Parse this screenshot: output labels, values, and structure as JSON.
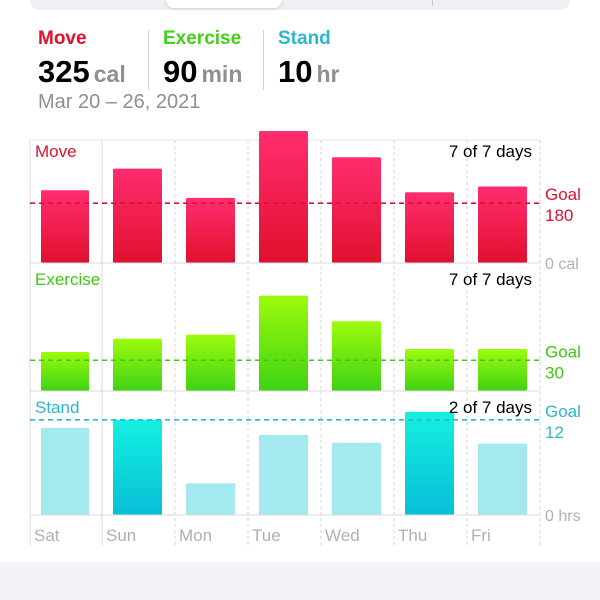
{
  "summary": {
    "move": {
      "label": "Move",
      "value": "325",
      "unit": "cal",
      "color": "#e0102e"
    },
    "exercise": {
      "label": "Exercise",
      "value": "90",
      "unit": "min",
      "color": "#3fd215"
    },
    "stand": {
      "label": "Stand",
      "value": "10",
      "unit": "hr",
      "color": "#2bb7cc"
    },
    "date_range": "Mar 20 – 26, 2021"
  },
  "chart_data": {
    "type": "bar",
    "categories": [
      "Sat",
      "Sun",
      "Mon",
      "Tue",
      "Wed",
      "Thu",
      "Fri"
    ],
    "panels": [
      {
        "name": "Move",
        "days_text": "7 of 7 days",
        "goal_label": "Goal",
        "goal_value": 180,
        "goal_value_text": "180",
        "baseline_text": "0 cal",
        "ymax": 370,
        "color_top": "#ff2d6f",
        "color_bottom": "#e0102e",
        "color_goal": "#d9132f",
        "label_color": "#d9132f",
        "values": [
          219,
          284,
          196,
          397,
          318,
          213,
          230
        ],
        "dim": [
          false,
          false,
          false,
          false,
          false,
          false,
          false
        ]
      },
      {
        "name": "Exercise",
        "days_text": "7 of 7 days",
        "goal_label": "Goal",
        "goal_value": 30,
        "goal_value_text": "30",
        "baseline_text": "",
        "ymax": 120,
        "color_top": "#9dfb0c",
        "color_bottom": "#3fd215",
        "color_goal": "#3ec90f",
        "label_color": "#3ec90f",
        "values": [
          38,
          51,
          55,
          93,
          68,
          41,
          41
        ],
        "dim": [
          false,
          false,
          false,
          false,
          false,
          false,
          false
        ]
      },
      {
        "name": "Stand",
        "days_text": "2 of 7 days",
        "goal_label": "Goal",
        "goal_value": 12,
        "goal_value_text": "12",
        "baseline_text": "0 hrs",
        "ymax": 15,
        "color_top": "#15f0e0",
        "color_bottom": "#06bfd6",
        "color_dim": "#a5e9f0",
        "color_goal": "#2bb7cc",
        "label_color": "#2bb7cc",
        "values": [
          11,
          12,
          4,
          10.1,
          9.1,
          13,
          9
        ],
        "dim": [
          true,
          false,
          true,
          true,
          true,
          false,
          true
        ]
      }
    ]
  }
}
